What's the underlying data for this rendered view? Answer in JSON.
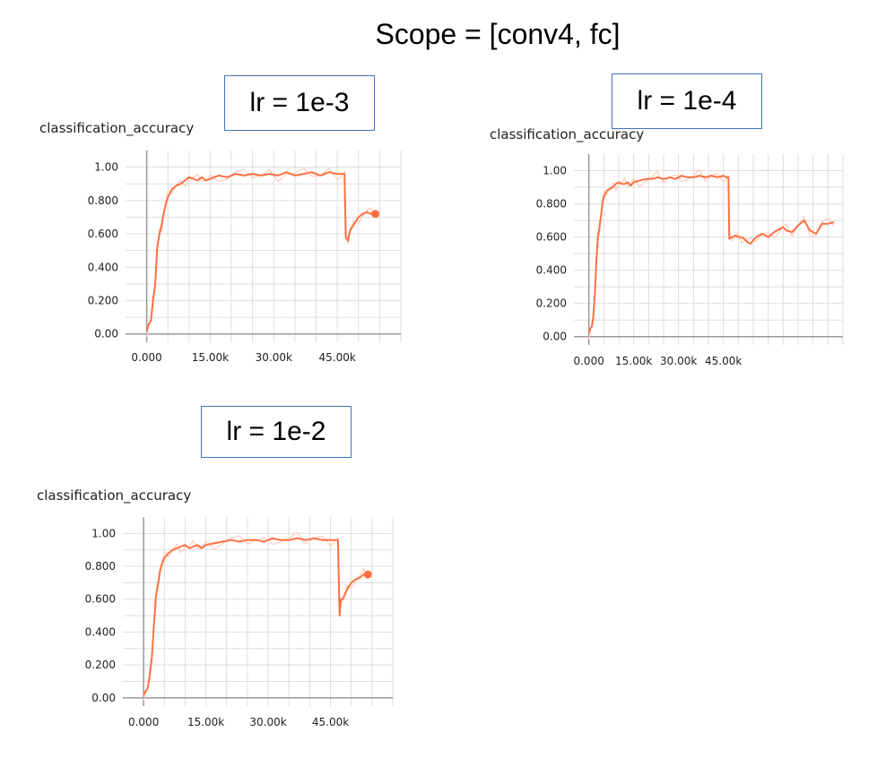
{
  "page": {
    "title": "Scope = [conv4, fc]"
  },
  "charts": [
    {
      "lr_label": "lr = 1e-3",
      "title": "classification_accuracy"
    },
    {
      "lr_label": "lr = 1e-4",
      "title": "classification_accuracy"
    },
    {
      "lr_label": "lr = 1e-2",
      "title": "classification_accuracy"
    }
  ],
  "colors": {
    "line": "#ff7043",
    "line_raw": "#ffccbc",
    "grid": "#dddddd",
    "axis": "#999999",
    "lr_box_border": "#4472c4"
  },
  "chart_data": [
    {
      "type": "line",
      "title": "classification_accuracy",
      "xlabel": "",
      "ylabel": "",
      "xlim": [
        -5000,
        60000
      ],
      "ylim": [
        -0.05,
        1.1
      ],
      "x_ticks": [
        0,
        15000,
        30000,
        45000
      ],
      "x_tick_labels": [
        "0.000",
        "15.00k",
        "30.00k",
        "45.00k"
      ],
      "y_ticks": [
        0,
        0.2,
        0.4,
        0.6,
        0.8,
        1.0
      ],
      "y_tick_labels": [
        "0.00",
        "0.200",
        "0.400",
        "0.600",
        "0.800",
        "1.00"
      ],
      "grid": true,
      "series": [
        {
          "x": [
            0,
            500,
            1000,
            1500,
            2000,
            2500,
            3000,
            3500,
            4000,
            4500,
            5000,
            6000,
            7000,
            8000,
            9000,
            10000,
            11000,
            12000,
            13000,
            14000,
            15000,
            17000,
            19000,
            21000,
            23000,
            25000,
            27000,
            29000,
            31000,
            33000,
            35000,
            37000,
            39000,
            41000,
            43000,
            45000,
            46000,
            46700,
            47000,
            47500,
            48000,
            49000,
            50000,
            51000,
            52000,
            53000,
            54000
          ],
          "y": [
            0.02,
            0.06,
            0.08,
            0.2,
            0.3,
            0.52,
            0.6,
            0.65,
            0.72,
            0.78,
            0.82,
            0.87,
            0.89,
            0.9,
            0.92,
            0.94,
            0.93,
            0.92,
            0.94,
            0.92,
            0.93,
            0.95,
            0.94,
            0.96,
            0.95,
            0.96,
            0.95,
            0.96,
            0.95,
            0.97,
            0.95,
            0.96,
            0.97,
            0.95,
            0.97,
            0.96,
            0.96,
            0.96,
            0.58,
            0.56,
            0.62,
            0.66,
            0.7,
            0.72,
            0.73,
            0.72,
            0.72
          ]
        }
      ],
      "end_marker": true
    },
    {
      "type": "line",
      "title": "classification_accuracy",
      "xlabel": "",
      "ylabel": "",
      "xlim": [
        -5000,
        85000
      ],
      "ylim": [
        -0.05,
        1.1
      ],
      "x_ticks": [
        0,
        15000,
        30000,
        45000
      ],
      "x_tick_labels": [
        "0.000",
        "15.00k",
        "30.00k",
        "45.00k"
      ],
      "y_ticks": [
        0,
        0.2,
        0.4,
        0.6,
        0.8,
        1.0
      ],
      "y_tick_labels": [
        "0.00",
        "0.200",
        "0.400",
        "0.600",
        "0.800",
        "1.00"
      ],
      "grid": true,
      "series": [
        {
          "x": [
            0,
            500,
            1000,
            1500,
            2000,
            2500,
            3000,
            3500,
            4000,
            4500,
            5000,
            6000,
            7000,
            8000,
            9000,
            10000,
            11000,
            12000,
            13000,
            14000,
            15000,
            17000,
            19000,
            21000,
            23000,
            25000,
            27000,
            29000,
            31000,
            33000,
            35000,
            37000,
            39000,
            41000,
            43000,
            45000,
            46000,
            46700,
            47000,
            48000,
            49000,
            50000,
            51000,
            52000,
            53000,
            54000,
            56000,
            58000,
            60000,
            62000,
            64000,
            65000,
            66000,
            68000,
            70000,
            72000,
            74000,
            76000,
            78000,
            80000,
            82000
          ],
          "y": [
            0.02,
            0.05,
            0.06,
            0.12,
            0.25,
            0.45,
            0.6,
            0.65,
            0.72,
            0.8,
            0.84,
            0.88,
            0.89,
            0.9,
            0.92,
            0.93,
            0.92,
            0.92,
            0.93,
            0.91,
            0.93,
            0.94,
            0.95,
            0.95,
            0.96,
            0.95,
            0.96,
            0.95,
            0.97,
            0.96,
            0.96,
            0.97,
            0.96,
            0.97,
            0.96,
            0.97,
            0.96,
            0.96,
            0.59,
            0.6,
            0.61,
            0.6,
            0.6,
            0.59,
            0.57,
            0.56,
            0.6,
            0.62,
            0.6,
            0.63,
            0.65,
            0.66,
            0.64,
            0.63,
            0.67,
            0.7,
            0.64,
            0.62,
            0.68,
            0.68,
            0.69
          ]
        }
      ],
      "end_marker": false
    },
    {
      "type": "line",
      "title": "classification_accuracy",
      "xlabel": "",
      "ylabel": "",
      "xlim": [
        -5000,
        60000
      ],
      "ylim": [
        -0.05,
        1.1
      ],
      "x_ticks": [
        0,
        15000,
        30000,
        45000
      ],
      "x_tick_labels": [
        "0.000",
        "15.00k",
        "30.00k",
        "45.00k"
      ],
      "y_ticks": [
        0,
        0.2,
        0.4,
        0.6,
        0.8,
        1.0
      ],
      "y_tick_labels": [
        "0.00",
        "0.200",
        "0.400",
        "0.600",
        "0.800",
        "1.00"
      ],
      "grid": true,
      "series": [
        {
          "x": [
            0,
            500,
            1000,
            1500,
            2000,
            2500,
            3000,
            3500,
            4000,
            4500,
            5000,
            6000,
            7000,
            8000,
            9000,
            10000,
            11000,
            12000,
            13000,
            14000,
            15000,
            17000,
            19000,
            21000,
            23000,
            25000,
            27000,
            29000,
            31000,
            33000,
            35000,
            37000,
            39000,
            41000,
            43000,
            45000,
            46000,
            46800,
            47200,
            47500,
            48000,
            49000,
            50000,
            51000,
            52000,
            53000,
            54000
          ],
          "y": [
            0.02,
            0.04,
            0.06,
            0.14,
            0.25,
            0.45,
            0.62,
            0.7,
            0.78,
            0.82,
            0.85,
            0.88,
            0.9,
            0.91,
            0.92,
            0.93,
            0.91,
            0.92,
            0.93,
            0.91,
            0.93,
            0.94,
            0.95,
            0.96,
            0.95,
            0.96,
            0.96,
            0.95,
            0.97,
            0.96,
            0.96,
            0.97,
            0.96,
            0.97,
            0.96,
            0.96,
            0.96,
            0.96,
            0.5,
            0.6,
            0.6,
            0.66,
            0.7,
            0.72,
            0.73,
            0.75,
            0.75
          ]
        }
      ],
      "end_marker": true
    }
  ]
}
